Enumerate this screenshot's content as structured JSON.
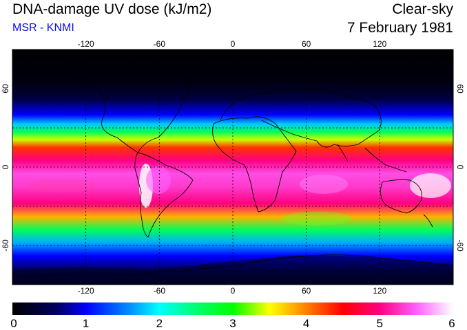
{
  "header": {
    "title": "DNA-damage UV dose (kJ/m2)",
    "source": "MSR - KNMI",
    "mode": "Clear-sky",
    "date": "7 February 1981"
  },
  "colors": {
    "source_text": "#0a0aee",
    "frame": "#000000",
    "ocean_dark": "#000000"
  },
  "map": {
    "longitude_ticks": [
      "-120",
      "-60",
      "0",
      "60",
      "120"
    ],
    "latitude_ticks": [
      "60",
      "0",
      "-60"
    ],
    "longitude_values": [
      -120,
      -60,
      0,
      60,
      120
    ],
    "latitude_values": [
      60,
      0,
      -60
    ],
    "lon_range": [
      -180,
      180
    ],
    "lat_range": [
      -90,
      90
    ]
  },
  "colorbar": {
    "labels": [
      "0",
      "1",
      "2",
      "3",
      "4",
      "5",
      "6"
    ],
    "min": 0,
    "max": 6,
    "stops": [
      {
        "v": 0.0,
        "c": "#000000"
      },
      {
        "v": 0.6,
        "c": "#000060"
      },
      {
        "v": 1.0,
        "c": "#0000ff"
      },
      {
        "v": 1.6,
        "c": "#0090ff"
      },
      {
        "v": 2.0,
        "c": "#00ffff"
      },
      {
        "v": 2.5,
        "c": "#00ff70"
      },
      {
        "v": 3.0,
        "c": "#00ff00"
      },
      {
        "v": 3.5,
        "c": "#ffff00"
      },
      {
        "v": 4.0,
        "c": "#ff8000"
      },
      {
        "v": 4.5,
        "c": "#ff0000"
      },
      {
        "v": 5.0,
        "c": "#ff0080"
      },
      {
        "v": 5.5,
        "c": "#ff60ff"
      },
      {
        "v": 6.0,
        "c": "#ffffff"
      }
    ]
  },
  "dose_profile": [
    {
      "lat": 90,
      "v": 0.0
    },
    {
      "lat": 65,
      "v": 0.1
    },
    {
      "lat": 52,
      "v": 0.4
    },
    {
      "lat": 40,
      "v": 1.0
    },
    {
      "lat": 33,
      "v": 1.8
    },
    {
      "lat": 27,
      "v": 2.6
    },
    {
      "lat": 21,
      "v": 3.4
    },
    {
      "lat": 15,
      "v": 4.3
    },
    {
      "lat": 5,
      "v": 5.0
    },
    {
      "lat": -5,
      "v": 5.4
    },
    {
      "lat": -15,
      "v": 5.3
    },
    {
      "lat": -28,
      "v": 5.0
    },
    {
      "lat": -38,
      "v": 3.8
    },
    {
      "lat": -48,
      "v": 2.6
    },
    {
      "lat": -58,
      "v": 1.7
    },
    {
      "lat": -68,
      "v": 1.0
    },
    {
      "lat": -80,
      "v": 0.5
    },
    {
      "lat": -90,
      "v": 0.2
    }
  ]
}
